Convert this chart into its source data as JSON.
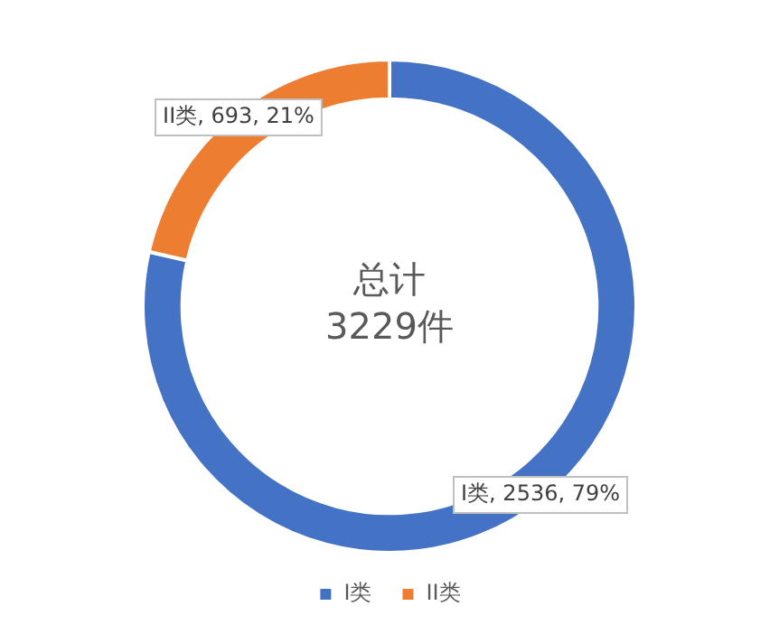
{
  "chart_data": {
    "type": "donut",
    "categories": [
      "I类",
      "II类"
    ],
    "values": [
      2536,
      693
    ],
    "colors": [
      "#4472c4",
      "#ed7d31"
    ],
    "value_labels": [
      "I类, 2536, 79%",
      "II类, 693, 21%"
    ],
    "annotations": [
      "总计",
      "3229件"
    ],
    "legend": "bottom"
  }
}
